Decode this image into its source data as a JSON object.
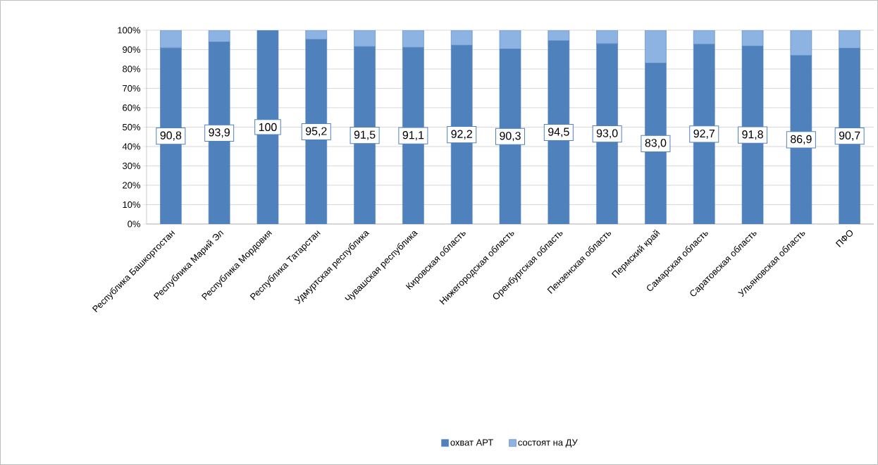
{
  "chart_data": {
    "type": "bar",
    "stacked": true,
    "categories": [
      "Республика Башкортостан",
      "Республика Марий Эл",
      "Республика Мордовия",
      "Республика Татарстан",
      "Удмуртская республика",
      "Чувашская республика",
      "Кировская область",
      "Нижегородская область",
      "Оренбургская область",
      "Пензенская область",
      "Пермский край",
      "Самарская область",
      "Саратовская область",
      "Ульяновская область",
      "ПФО"
    ],
    "series": [
      {
        "name": "охват АРТ",
        "color": "#4f81bd",
        "values": [
          90.8,
          93.9,
          100,
          95.2,
          91.5,
          91.1,
          92.2,
          90.3,
          94.5,
          93.0,
          83.0,
          92.7,
          91.8,
          86.9,
          90.7
        ],
        "value_labels": [
          "90,8",
          "93,9",
          "100",
          "95,2",
          "91,5",
          "91,1",
          "92,2",
          "90,3",
          "94,5",
          "93,0",
          "83,0",
          "92,7",
          "91,8",
          "86,9",
          "90,7"
        ]
      },
      {
        "name": "состоят на ДУ",
        "color": "#8db3e2",
        "values": [
          9.2,
          6.1,
          0,
          4.8,
          8.5,
          8.9,
          7.8,
          9.7,
          5.5,
          7.0,
          17.0,
          7.3,
          8.2,
          13.1,
          9.3
        ]
      }
    ],
    "ylim": [
      0,
      100
    ],
    "yticks": [
      {
        "value": 0,
        "label": "0%"
      },
      {
        "value": 10,
        "label": "10%"
      },
      {
        "value": 20,
        "label": "20%"
      },
      {
        "value": 30,
        "label": "30%"
      },
      {
        "value": 40,
        "label": "40%"
      },
      {
        "value": 50,
        "label": "50%"
      },
      {
        "value": 60,
        "label": "60%"
      },
      {
        "value": 70,
        "label": "70%"
      },
      {
        "value": 80,
        "label": "80%"
      },
      {
        "value": 90,
        "label": "90%"
      },
      {
        "value": 100,
        "label": "100%"
      }
    ],
    "grid": "y",
    "legend": "bottom"
  }
}
